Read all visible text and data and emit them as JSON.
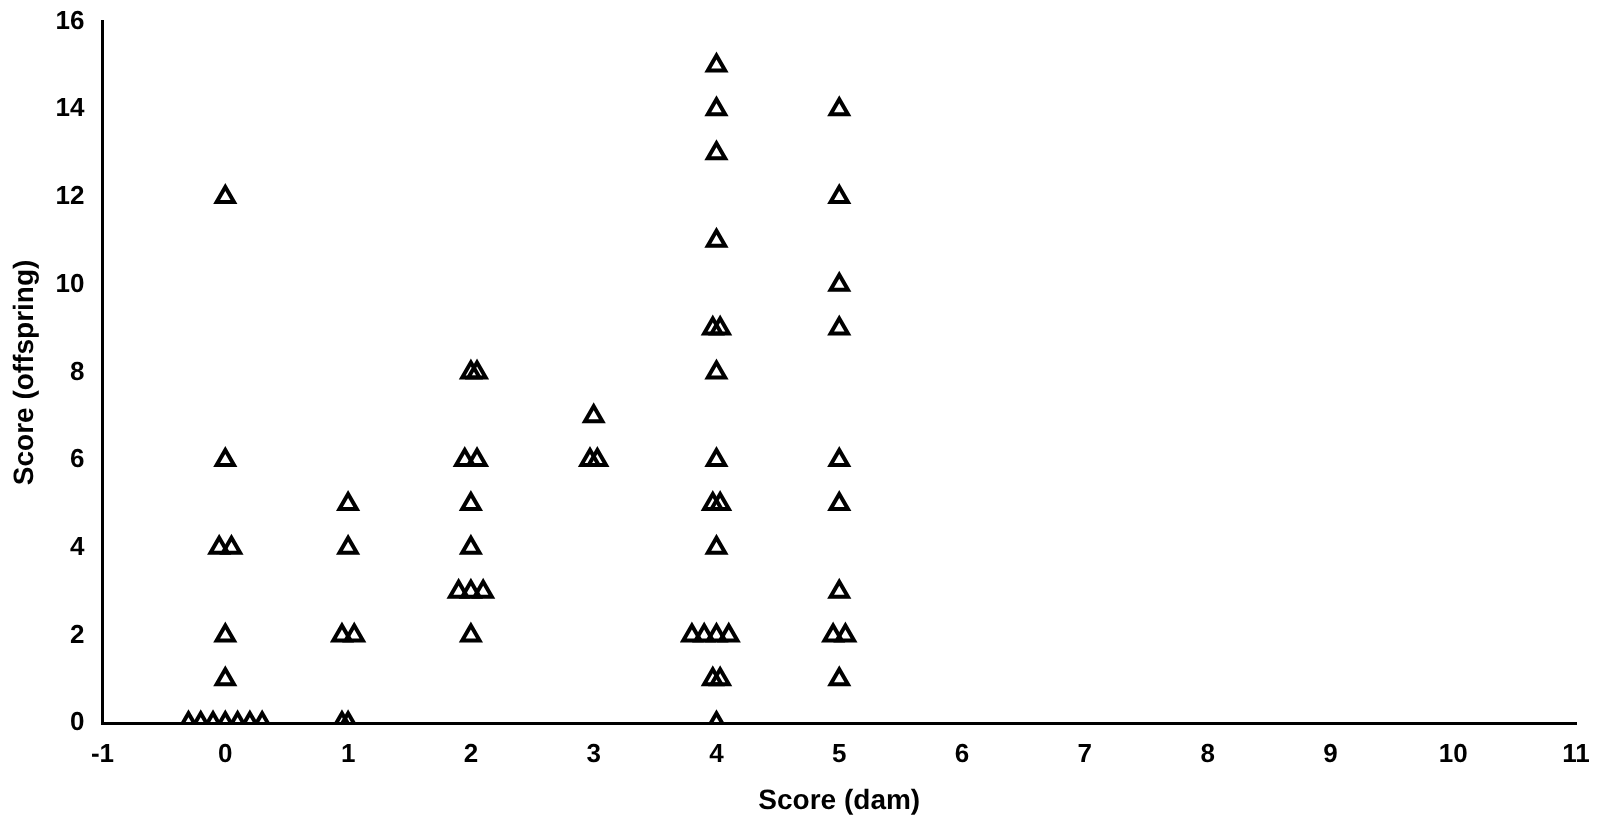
{
  "chart_data": {
    "type": "scatter",
    "xlabel": "Score (dam)",
    "ylabel": "Score (offspring)",
    "x": [
      0,
      -0.05,
      0.05,
      0,
      0,
      0,
      -0.3,
      -0.2,
      -0.1,
      0,
      0.1,
      0.2,
      0.3,
      1,
      1,
      0.95,
      1.05,
      1,
      0.95,
      2,
      2.05,
      1.95,
      2.05,
      2,
      2,
      1.9,
      2,
      2.1,
      2,
      3,
      2.97,
      3.03,
      4,
      4,
      4,
      4,
      3.97,
      4.03,
      4,
      4,
      3.97,
      4.03,
      4,
      3.8,
      3.9,
      4,
      4.1,
      3.97,
      4.03,
      4,
      5,
      5,
      5,
      5,
      5,
      5,
      5,
      4.95,
      5.05,
      5
    ],
    "values": [
      12,
      4,
      4,
      6,
      2,
      1,
      0,
      0,
      0,
      0,
      0,
      0,
      0,
      5,
      4,
      2,
      2,
      0,
      0,
      8,
      8,
      6,
      6,
      5,
      4,
      3,
      3,
      3,
      2,
      7,
      6,
      6,
      15,
      14,
      13,
      11,
      9,
      9,
      8,
      6,
      5,
      5,
      4,
      2,
      2,
      2,
      2,
      1,
      1,
      0,
      14,
      12,
      10,
      9,
      6,
      5,
      3,
      2,
      2,
      1
    ],
    "color": "#000000",
    "marker": "triangle",
    "grid": false,
    "legend": false,
    "xlim": [
      -1,
      11
    ],
    "xticks": [
      -1,
      0,
      1,
      2,
      3,
      4,
      5,
      6,
      7,
      8,
      9,
      10,
      11
    ],
    "ylim": [
      0,
      16
    ],
    "yticks": [
      0,
      2,
      4,
      6,
      8,
      10,
      12,
      14,
      16
    ]
  }
}
